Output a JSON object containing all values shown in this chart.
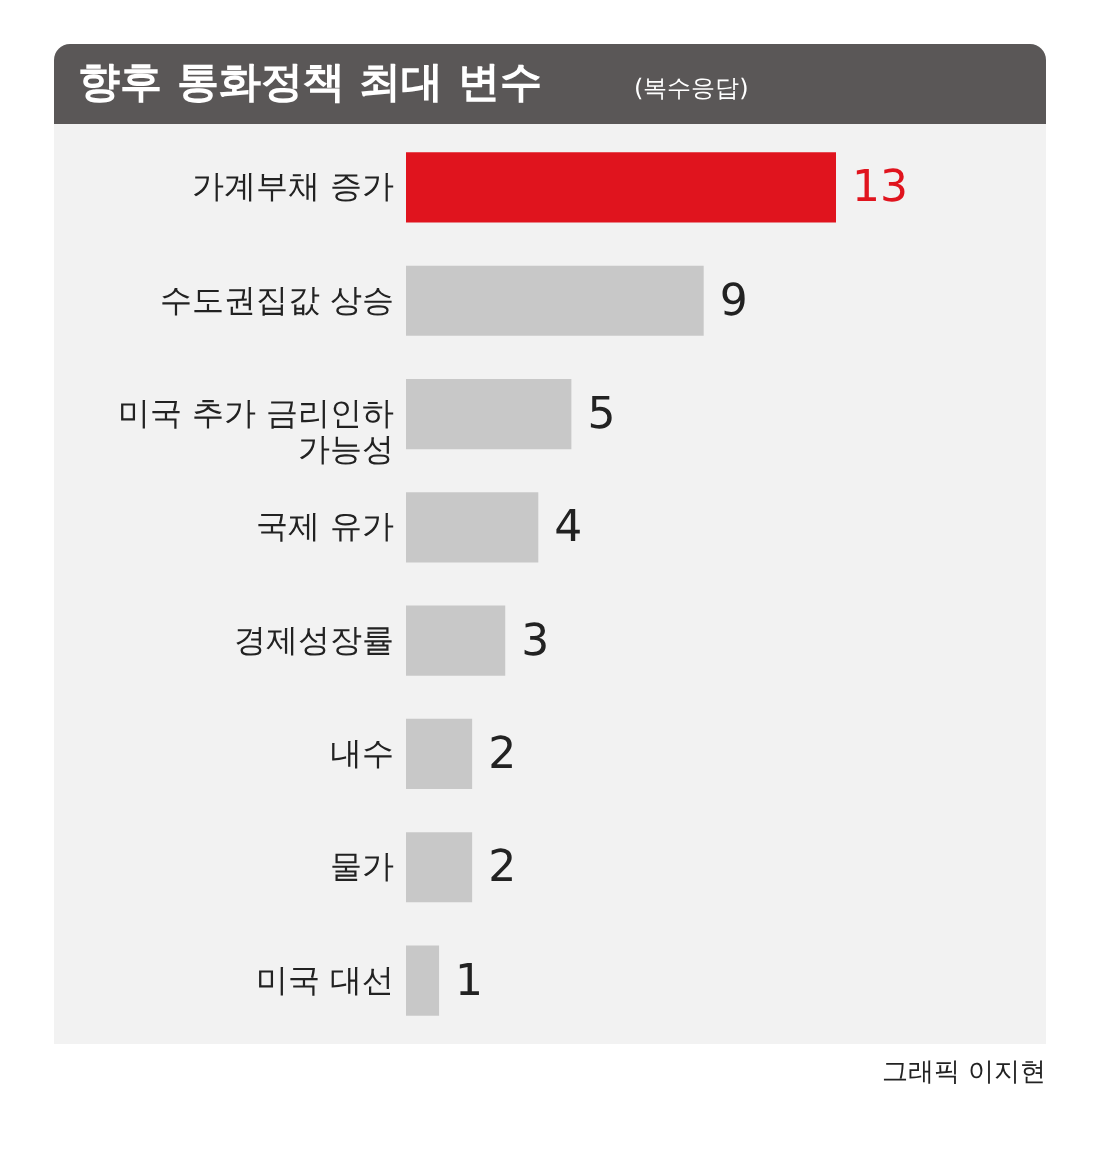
{
  "chart_data": {
    "type": "bar",
    "orientation": "horizontal",
    "title": "향후 통화정책 최대 변수",
    "subtitle": "(복수응답)",
    "categories": [
      "가계부채 증가",
      "수도권집값 상승",
      "미국 추가 금리인하\n가능성",
      "국제 유가",
      "경제성장률",
      "내수",
      "물가",
      "미국 대선"
    ],
    "values": [
      13,
      9,
      5,
      4,
      3,
      2,
      2,
      1
    ],
    "colors": [
      "#e0141e",
      "#c8c8c8",
      "#c8c8c8",
      "#c8c8c8",
      "#c8c8c8",
      "#c8c8c8",
      "#c8c8c8",
      "#c8c8c8"
    ],
    "data_labels": true,
    "annotations": [
      "그래픽 이지현"
    ]
  }
}
